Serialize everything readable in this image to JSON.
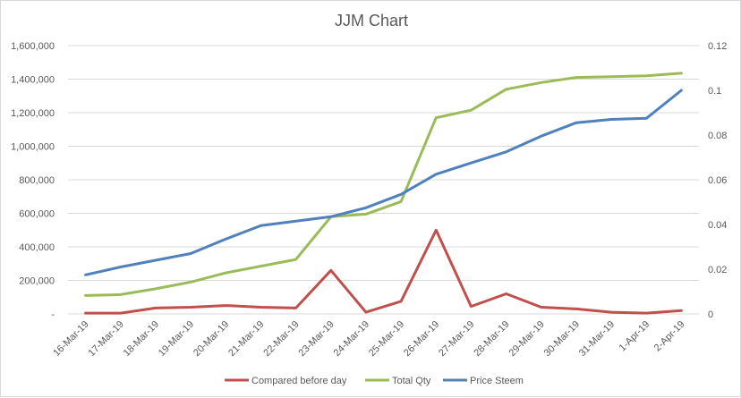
{
  "chart_data": {
    "type": "line",
    "title": "JJM Chart",
    "categories": [
      "16-Mar-19",
      "17-Mar-19",
      "18-Mar-19",
      "19-Mar-19",
      "20-Mar-19",
      "21-Mar-19",
      "22-Mar-19",
      "23-Mar-19",
      "24-Mar-19",
      "25-Mar-19",
      "26-Mar-19",
      "27-Mar-19",
      "28-Mar-19",
      "29-Mar-19",
      "30-Mar-19",
      "31-Mar-19",
      "1-Apr-19",
      "2-Apr-19"
    ],
    "y_left": {
      "ylim": [
        0,
        1600000
      ],
      "ticks": [
        0,
        200000,
        400000,
        600000,
        800000,
        1000000,
        1200000,
        1400000,
        1600000
      ],
      "tick_labels": [
        "-",
        "200,000",
        "400,000",
        "600,000",
        "800,000",
        "1,000,000",
        "1,200,000",
        "1,400,000",
        "1,600,000"
      ]
    },
    "y_right": {
      "ylim": [
        0,
        0.12
      ],
      "ticks": [
        0,
        0.02,
        0.04,
        0.06,
        0.08,
        0.1,
        0.12
      ],
      "tick_labels": [
        "0",
        "0.02",
        "0.04",
        "0.06",
        "0.08",
        "0.1",
        "0.12"
      ]
    },
    "series": [
      {
        "name": "Compared before day",
        "axis": "left",
        "color": "#c0504d",
        "values": [
          5000,
          5000,
          35000,
          40000,
          50000,
          40000,
          35000,
          260000,
          10000,
          75000,
          500000,
          45000,
          120000,
          40000,
          30000,
          10000,
          5000,
          20000
        ]
      },
      {
        "name": "Total Qty",
        "axis": "left",
        "color": "#9bbb59",
        "values": [
          110000,
          115000,
          150000,
          190000,
          245000,
          285000,
          325000,
          580000,
          595000,
          670000,
          1170000,
          1215000,
          1340000,
          1380000,
          1410000,
          1415000,
          1420000,
          1435000
        ]
      },
      {
        "name": "Price Steem",
        "axis": "right",
        "color": "#4f81bd",
        "values": [
          0.0175,
          0.021,
          0.024,
          0.027,
          0.0335,
          0.0395,
          0.0415,
          0.0435,
          0.0475,
          0.0535,
          0.0625,
          0.0675,
          0.0725,
          0.0795,
          0.0855,
          0.087,
          0.0875,
          0.1
        ]
      }
    ],
    "legend_position": "bottom",
    "grid": "horizontal"
  }
}
